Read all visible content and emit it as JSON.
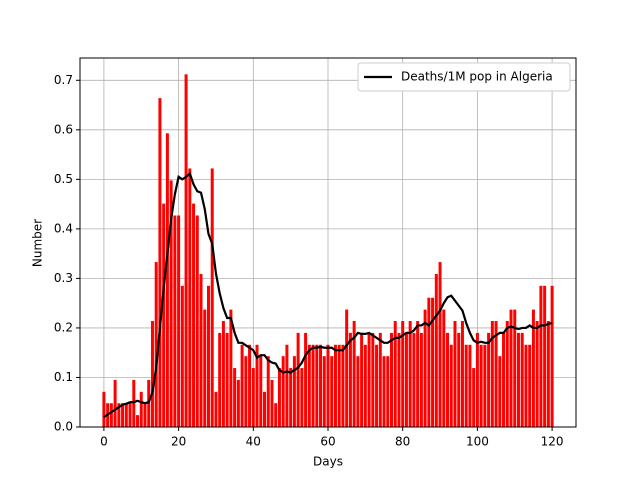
{
  "chart_data": {
    "type": "bar",
    "xlabel": "Days",
    "ylabel": "Number",
    "x": [
      0,
      1,
      2,
      3,
      4,
      5,
      6,
      7,
      8,
      9,
      10,
      11,
      12,
      13,
      14,
      15,
      16,
      17,
      18,
      19,
      20,
      21,
      22,
      23,
      24,
      25,
      26,
      27,
      28,
      29,
      30,
      31,
      32,
      33,
      34,
      35,
      36,
      37,
      38,
      39,
      40,
      41,
      42,
      43,
      44,
      45,
      46,
      47,
      48,
      49,
      50,
      51,
      52,
      53,
      54,
      55,
      56,
      57,
      58,
      59,
      60,
      61,
      62,
      63,
      64,
      65,
      66,
      67,
      68,
      69,
      70,
      71,
      72,
      73,
      74,
      75,
      76,
      77,
      78,
      79,
      80,
      81,
      82,
      83,
      84,
      85,
      86,
      87,
      88,
      89,
      90,
      91,
      92,
      93,
      94,
      95,
      96,
      97,
      98,
      99,
      100,
      101,
      102,
      103,
      104,
      105,
      106,
      107,
      108,
      109,
      110,
      111,
      112,
      113,
      114,
      115,
      116,
      117,
      118,
      119,
      120
    ],
    "series": [
      {
        "type": "bar",
        "color": "#ff0000",
        "values": [
          0.071,
          0.048,
          0.048,
          0.095,
          0.048,
          0.048,
          0.048,
          0.048,
          0.095,
          0.024,
          0.071,
          0.048,
          0.095,
          0.214,
          0.333,
          0.664,
          0.451,
          0.593,
          0.498,
          0.427,
          0.427,
          0.285,
          0.712,
          0.522,
          0.451,
          0.427,
          0.309,
          0.237,
          0.285,
          0.522,
          0.071,
          0.19,
          0.214,
          0.19,
          0.237,
          0.119,
          0.095,
          0.166,
          0.143,
          0.166,
          0.119,
          0.166,
          0.143,
          0.071,
          0.143,
          0.095,
          0.048,
          0.119,
          0.143,
          0.166,
          0.119,
          0.143,
          0.19,
          0.119,
          0.19,
          0.166,
          0.166,
          0.166,
          0.166,
          0.143,
          0.166,
          0.143,
          0.166,
          0.166,
          0.166,
          0.237,
          0.19,
          0.214,
          0.143,
          0.19,
          0.166,
          0.19,
          0.19,
          0.166,
          0.19,
          0.143,
          0.143,
          0.19,
          0.214,
          0.19,
          0.214,
          0.19,
          0.214,
          0.19,
          0.214,
          0.19,
          0.237,
          0.261,
          0.261,
          0.309,
          0.333,
          0.237,
          0.19,
          0.166,
          0.214,
          0.19,
          0.214,
          0.166,
          0.166,
          0.119,
          0.19,
          0.166,
          0.166,
          0.19,
          0.214,
          0.214,
          0.143,
          0.19,
          0.214,
          0.237,
          0.237,
          0.19,
          0.19,
          0.166,
          0.166,
          0.237,
          0.214,
          0.285,
          0.285,
          0.214,
          0.285
        ]
      },
      {
        "type": "line",
        "name": "Deaths/1M pop in Algeria",
        "color": "#000000",
        "values": [
          0.02,
          0.025,
          0.03,
          0.035,
          0.04,
          0.045,
          0.047,
          0.05,
          0.05,
          0.053,
          0.05,
          0.048,
          0.05,
          0.07,
          0.12,
          0.2,
          0.28,
          0.35,
          0.42,
          0.47,
          0.505,
          0.5,
          0.505,
          0.512,
          0.49,
          0.476,
          0.473,
          0.44,
          0.39,
          0.37,
          0.31,
          0.27,
          0.24,
          0.22,
          0.22,
          0.19,
          0.17,
          0.17,
          0.165,
          0.16,
          0.155,
          0.14,
          0.145,
          0.145,
          0.135,
          0.13,
          0.128,
          0.115,
          0.11,
          0.112,
          0.11,
          0.115,
          0.12,
          0.13,
          0.145,
          0.155,
          0.16,
          0.16,
          0.162,
          0.16,
          0.16,
          0.16,
          0.155,
          0.155,
          0.155,
          0.165,
          0.175,
          0.18,
          0.19,
          0.188,
          0.188,
          0.19,
          0.185,
          0.18,
          0.175,
          0.17,
          0.17,
          0.175,
          0.18,
          0.18,
          0.185,
          0.19,
          0.19,
          0.195,
          0.205,
          0.205,
          0.21,
          0.205,
          0.215,
          0.225,
          0.235,
          0.25,
          0.262,
          0.265,
          0.255,
          0.245,
          0.235,
          0.21,
          0.19,
          0.175,
          0.17,
          0.172,
          0.17,
          0.17,
          0.18,
          0.185,
          0.19,
          0.19,
          0.2,
          0.203,
          0.2,
          0.198,
          0.2,
          0.2,
          0.205,
          0.2,
          0.2,
          0.205,
          0.205,
          0.208,
          0.21
        ]
      }
    ],
    "xlim": [
      -6.4,
      126.4
    ],
    "xticks": [
      0,
      20,
      40,
      60,
      80,
      100,
      120
    ],
    "ylim": [
      0,
      0.745
    ],
    "yticks": [
      {
        "value": 0,
        "label": "0.0"
      },
      0.1,
      0.2,
      0.3,
      0.4,
      0.5,
      0.6,
      0.7
    ],
    "grid": true,
    "legend": "upper right"
  }
}
